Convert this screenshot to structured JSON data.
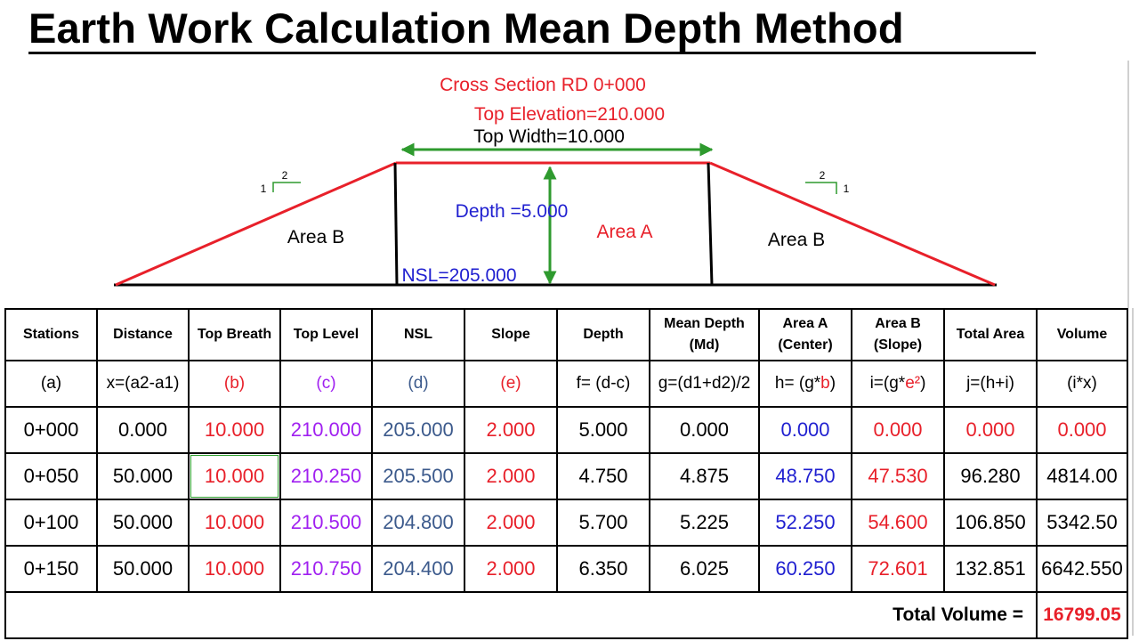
{
  "title": "Earth Work  Calculation  Mean Depth Method",
  "diagram": {
    "cross_section": "Cross Section RD 0+000",
    "top_elevation": "Top Elevation=210.000",
    "top_width": "Top Width=10.000",
    "depth": "Depth =5.000",
    "nsl": "NSL=205.000",
    "area_a": "Area A",
    "area_b_left": "Area B",
    "area_b_right": "Area B",
    "slope_left_v": "1",
    "slope_left_h": "2",
    "slope_right_v": "1",
    "slope_right_h": "2",
    "colors": {
      "red": "#e8202a",
      "green": "#2e9a2e",
      "blue": "#1f1fd0",
      "black": "#000000"
    }
  },
  "table": {
    "headers": [
      "Stations",
      "Distance",
      "Top Breath",
      "Top Level",
      "NSL",
      "Slope",
      "Depth",
      "Mean Depth (Md)",
      "Area A (Center)",
      "Area B (Slope)",
      "Total Area",
      "Volume"
    ],
    "formulas": {
      "stations": "(a)",
      "distance": "x=(a2-a1)",
      "top_breath": "(b)",
      "top_level": "(c)",
      "nsl": "(d)",
      "slope": "(e)",
      "depth": "f= (d-c)",
      "mean_depth": "g=(d1+d2)/2",
      "area_a_prefix": "h= (g*",
      "area_a_var": "b",
      "area_a_suffix": ")",
      "area_b_prefix": "i=(g*",
      "area_b_var": "e²",
      "area_b_suffix": ")",
      "total_area": "j=(h+i)",
      "volume": "(i*x)"
    },
    "rows": [
      [
        "0+000",
        "0.000",
        "10.000",
        "210.000",
        "205.000",
        "2.000",
        "5.000",
        "0.000",
        "0.000",
        "0.000",
        "0.000",
        "0.000"
      ],
      [
        "0+050",
        "50.000",
        "10.000",
        "210.250",
        "205.500",
        "2.000",
        "4.750",
        "4.875",
        "48.750",
        "47.530",
        "96.280",
        "4814.00"
      ],
      [
        "0+100",
        "50.000",
        "10.000",
        "210.500",
        "204.800",
        "2.000",
        "5.700",
        "5.225",
        "52.250",
        "54.600",
        "106.850",
        "5342.50"
      ],
      [
        "0+150",
        "50.000",
        "10.000",
        "210.750",
        "204.400",
        "2.000",
        "6.350",
        "6.025",
        "60.250",
        "72.601",
        "132.851",
        "6642.550"
      ]
    ],
    "total_label": "Total Volume =",
    "total_value": "16799.05"
  }
}
